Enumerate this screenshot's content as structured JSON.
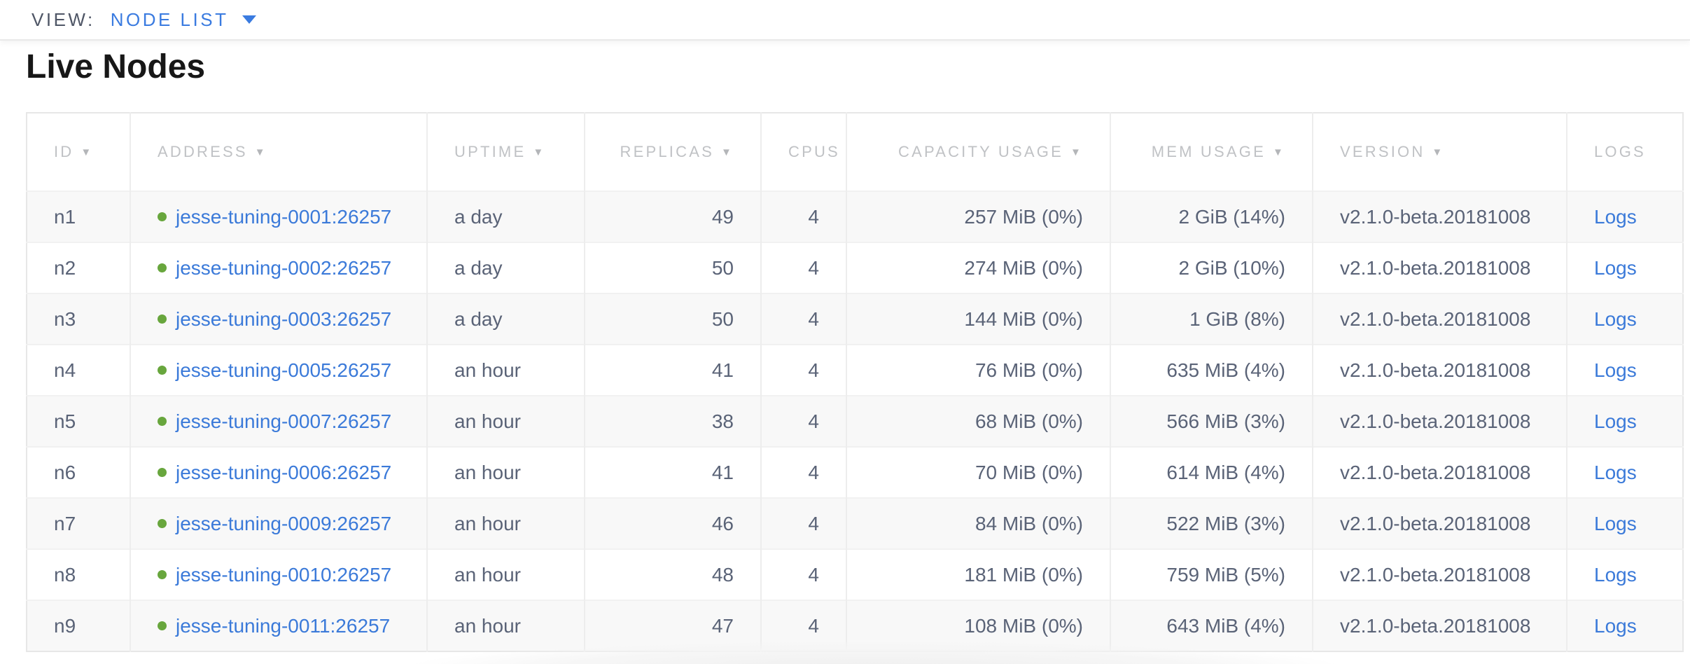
{
  "view_bar": {
    "label": "VIEW:",
    "selected_view": "NODE LIST"
  },
  "page": {
    "title": "Live Nodes"
  },
  "table": {
    "columns": [
      {
        "key": "id",
        "label": "ID",
        "sortable": true,
        "align": "left"
      },
      {
        "key": "address",
        "label": "ADDRESS",
        "sortable": true,
        "align": "left"
      },
      {
        "key": "uptime",
        "label": "UPTIME",
        "sortable": true,
        "align": "left"
      },
      {
        "key": "replicas",
        "label": "REPLICAS",
        "sortable": true,
        "align": "right"
      },
      {
        "key": "cpus",
        "label": "CPUS",
        "sortable": false,
        "align": "right"
      },
      {
        "key": "capacity",
        "label": "CAPACITY USAGE",
        "sortable": true,
        "align": "right"
      },
      {
        "key": "mem",
        "label": "MEM USAGE",
        "sortable": true,
        "align": "right"
      },
      {
        "key": "version",
        "label": "VERSION",
        "sortable": true,
        "align": "left"
      },
      {
        "key": "logs",
        "label": "LOGS",
        "sortable": false,
        "align": "left"
      }
    ],
    "rows": [
      {
        "id": "n1",
        "status": "live",
        "address": "jesse-tuning-0001:26257",
        "uptime": "a day",
        "replicas": "49",
        "cpus": "4",
        "capacity": "257 MiB (0%)",
        "mem": "2 GiB (14%)",
        "version": "v2.1.0-beta.20181008",
        "logs": "Logs"
      },
      {
        "id": "n2",
        "status": "live",
        "address": "jesse-tuning-0002:26257",
        "uptime": "a day",
        "replicas": "50",
        "cpus": "4",
        "capacity": "274 MiB (0%)",
        "mem": "2 GiB (10%)",
        "version": "v2.1.0-beta.20181008",
        "logs": "Logs"
      },
      {
        "id": "n3",
        "status": "live",
        "address": "jesse-tuning-0003:26257",
        "uptime": "a day",
        "replicas": "50",
        "cpus": "4",
        "capacity": "144 MiB (0%)",
        "mem": "1 GiB (8%)",
        "version": "v2.1.0-beta.20181008",
        "logs": "Logs"
      },
      {
        "id": "n4",
        "status": "live",
        "address": "jesse-tuning-0005:26257",
        "uptime": "an hour",
        "replicas": "41",
        "cpus": "4",
        "capacity": "76 MiB (0%)",
        "mem": "635 MiB (4%)",
        "version": "v2.1.0-beta.20181008",
        "logs": "Logs"
      },
      {
        "id": "n5",
        "status": "live",
        "address": "jesse-tuning-0007:26257",
        "uptime": "an hour",
        "replicas": "38",
        "cpus": "4",
        "capacity": "68 MiB (0%)",
        "mem": "566 MiB (3%)",
        "version": "v2.1.0-beta.20181008",
        "logs": "Logs"
      },
      {
        "id": "n6",
        "status": "live",
        "address": "jesse-tuning-0006:26257",
        "uptime": "an hour",
        "replicas": "41",
        "cpus": "4",
        "capacity": "70 MiB (0%)",
        "mem": "614 MiB (4%)",
        "version": "v2.1.0-beta.20181008",
        "logs": "Logs"
      },
      {
        "id": "n7",
        "status": "live",
        "address": "jesse-tuning-0009:26257",
        "uptime": "an hour",
        "replicas": "46",
        "cpus": "4",
        "capacity": "84 MiB (0%)",
        "mem": "522 MiB (3%)",
        "version": "v2.1.0-beta.20181008",
        "logs": "Logs"
      },
      {
        "id": "n8",
        "status": "live",
        "address": "jesse-tuning-0010:26257",
        "uptime": "an hour",
        "replicas": "48",
        "cpus": "4",
        "capacity": "181 MiB (0%)",
        "mem": "759 MiB (5%)",
        "version": "v2.1.0-beta.20181008",
        "logs": "Logs"
      },
      {
        "id": "n9",
        "status": "live",
        "address": "jesse-tuning-0011:26257",
        "uptime": "an hour",
        "replicas": "47",
        "cpus": "4",
        "capacity": "108 MiB (0%)",
        "mem": "643 MiB (4%)",
        "version": "v2.1.0-beta.20181008",
        "logs": "Logs"
      }
    ]
  },
  "icons": {
    "sort_desc": "sort-desc-icon",
    "dropdown_caret": "dropdown-caret-icon",
    "node_status_live": "node-status-live-icon"
  },
  "colors": {
    "accent_blue": "#3a7be0",
    "link_blue": "#3b7ad9",
    "status_live_green": "#68a63d",
    "header_text": "#c0c2c5",
    "body_text": "#5a6377",
    "view_label_text": "#4f5666",
    "title_text": "#171717"
  }
}
